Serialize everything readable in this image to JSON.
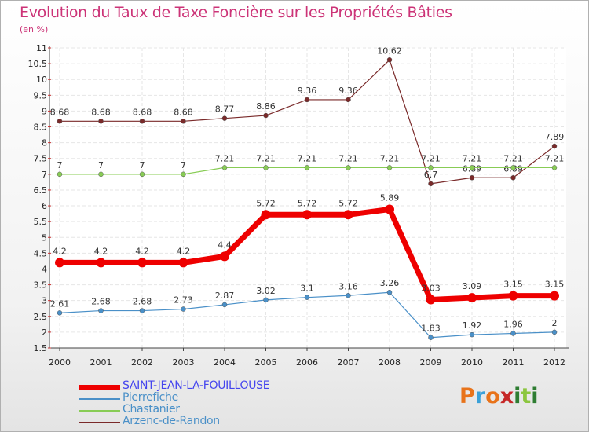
{
  "header": {
    "title": "Evolution du Taux de Taxe Foncière sur les Propriétés Bâties",
    "unit": "(en %)"
  },
  "brand": {
    "text": "Proxiti",
    "colors": [
      "#e8731a",
      "#3aa0d8",
      "#e8731a",
      "#c62828",
      "#2e7d32",
      "#8cc63f",
      "#2e7d32"
    ]
  },
  "chart_data": {
    "type": "line",
    "title": "Evolution du Taux de Taxe Foncière sur les Propriétés Bâties",
    "ylabel": "(en %)",
    "xlabel": "",
    "ylim": [
      1.5,
      11
    ],
    "yticks": [
      "1.5",
      "2",
      "2.5",
      "3",
      "3.5",
      "4",
      "4.5",
      "5",
      "5.5",
      "6",
      "6.5",
      "7",
      "7.5",
      "8",
      "8.5",
      "9",
      "9.5",
      "10",
      "10.5",
      "11"
    ],
    "categories": [
      "2000",
      "2001",
      "2002",
      "2003",
      "2004",
      "2005",
      "2006",
      "2007",
      "2008",
      "2009",
      "2010",
      "2011",
      "2012"
    ],
    "legend_position": "bottom-left",
    "series": [
      {
        "name": "Arzenc-de-Randon",
        "color": "#7a2a2a",
        "values": [
          8.68,
          8.68,
          8.68,
          8.68,
          8.77,
          8.86,
          9.36,
          9.36,
          10.62,
          6.7,
          6.89,
          6.89,
          7.89
        ],
        "labels": [
          "8.68",
          "8.68",
          "8.68",
          "8.68",
          "8.77",
          "8.86",
          "9.36",
          "9.36",
          "10.62",
          "6.7",
          "6.89",
          "6.89",
          "7.89"
        ]
      },
      {
        "name": "Chastanier",
        "color": "#88cc55",
        "values": [
          7,
          7,
          7,
          7,
          7.21,
          7.21,
          7.21,
          7.21,
          7.21,
          7.21,
          7.21,
          7.21,
          7.21
        ],
        "labels": [
          "7",
          "7",
          "7",
          "7",
          "7.21",
          "7.21",
          "7.21",
          "7.21",
          "7.21",
          "7.21",
          "7.21",
          "7.21",
          "7.21"
        ]
      },
      {
        "name": "Pierrefiche",
        "color": "#4a90c8",
        "values": [
          2.61,
          2.68,
          2.68,
          2.73,
          2.87,
          3.02,
          3.1,
          3.16,
          3.26,
          1.83,
          1.92,
          1.96,
          2
        ],
        "labels": [
          "2.61",
          "2.68",
          "2.68",
          "2.73",
          "2.87",
          "3.02",
          "3.1",
          "3.16",
          "3.26",
          "1.83",
          "1.92",
          "1.96",
          "2"
        ]
      },
      {
        "name": "SAINT-JEAN-LA-FOUILLOUSE",
        "color": "#ee0000",
        "values": [
          4.2,
          4.2,
          4.2,
          4.2,
          4.4,
          5.72,
          5.72,
          5.72,
          5.89,
          3.03,
          3.09,
          3.15,
          3.15
        ],
        "labels": [
          "4.2",
          "4.2",
          "4.2",
          "4.2",
          "4.4",
          "5.72",
          "5.72",
          "5.72",
          "5.89",
          "3.03",
          "3.09",
          "3.15",
          "3.15"
        ]
      }
    ],
    "legend": [
      {
        "name": "SAINT-JEAN-LA-FOUILLOUSE",
        "color": "#ee0000",
        "label_color": "#4444ee",
        "thick": true
      },
      {
        "name": "Pierrefiche",
        "color": "#4a90c8",
        "label_color": "#4a90c8",
        "thick": false
      },
      {
        "name": "Chastanier",
        "color": "#88cc55",
        "label_color": "#4a90c8",
        "thick": false
      },
      {
        "name": "Arzenc-de-Randon",
        "color": "#7a2a2a",
        "label_color": "#4a90c8",
        "thick": false
      }
    ]
  }
}
